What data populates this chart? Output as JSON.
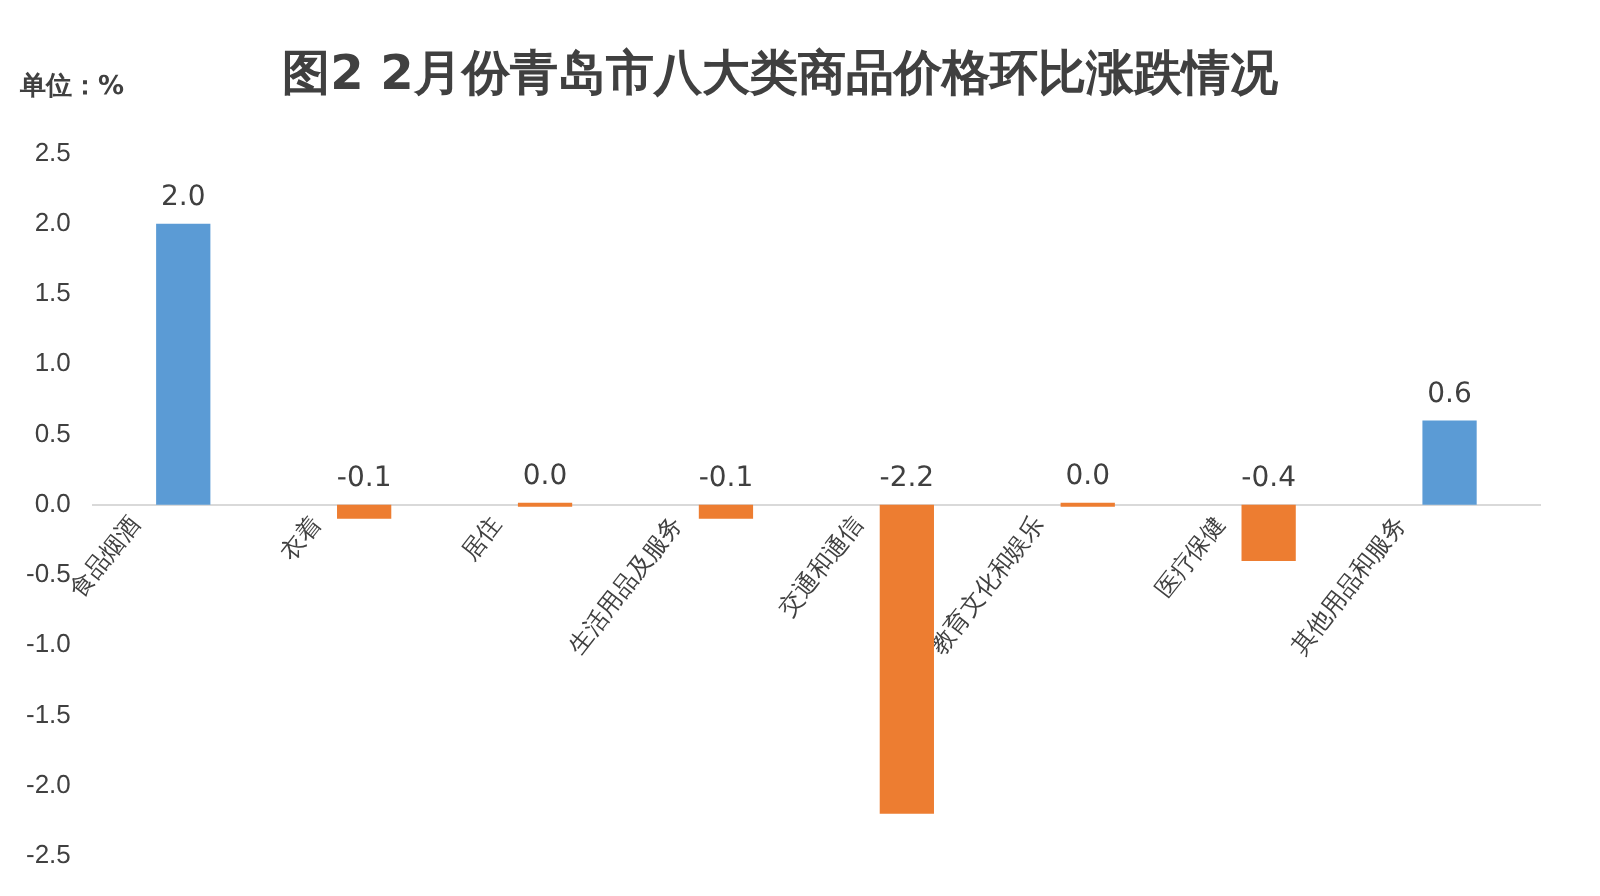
{
  "chart_data": {
    "type": "bar",
    "title": "图2 2月份青岛市八大类商品价格环比涨跌情况",
    "ylabel": "单位：%",
    "categories": [
      "食品烟酒",
      "衣着",
      "居住",
      "生活用品及服务",
      "交通和通信",
      "教育文化和娱乐",
      "医疗保健",
      "其他用品和服务"
    ],
    "values": [
      2.0,
      -0.1,
      0.0,
      -0.1,
      -2.2,
      0.0,
      -0.4,
      0.6
    ],
    "colors": [
      "#5b9bd5",
      "#ed7d31",
      "#ed7d31",
      "#ed7d31",
      "#ed7d31",
      "#ed7d31",
      "#ed7d31",
      "#5b9bd5"
    ],
    "value_labels": [
      "2.0",
      "-0.1",
      "0.0",
      "-0.1",
      "-2.2",
      "0.0",
      "-0.4",
      "0.6"
    ],
    "ylim": [
      -2.5,
      2.5
    ],
    "yticks": [
      {
        "value": -2.5,
        "label": "-2.5"
      },
      {
        "value": -2,
        "label": "-2.0"
      },
      {
        "value": -1.5,
        "label": "-1.5"
      },
      {
        "value": -1,
        "label": "-1.0"
      },
      {
        "value": -0.5,
        "label": "-0.5"
      },
      {
        "value": 0,
        "label": "0.0"
      },
      {
        "value": 0.5,
        "label": "0.5"
      },
      {
        "value": 1,
        "label": "1.0"
      },
      {
        "value": 1.5,
        "label": "1.5"
      },
      {
        "value": 2,
        "label": "2.0"
      },
      {
        "value": 2.5,
        "label": "2.5"
      }
    ],
    "grid": false,
    "legend": false
  }
}
